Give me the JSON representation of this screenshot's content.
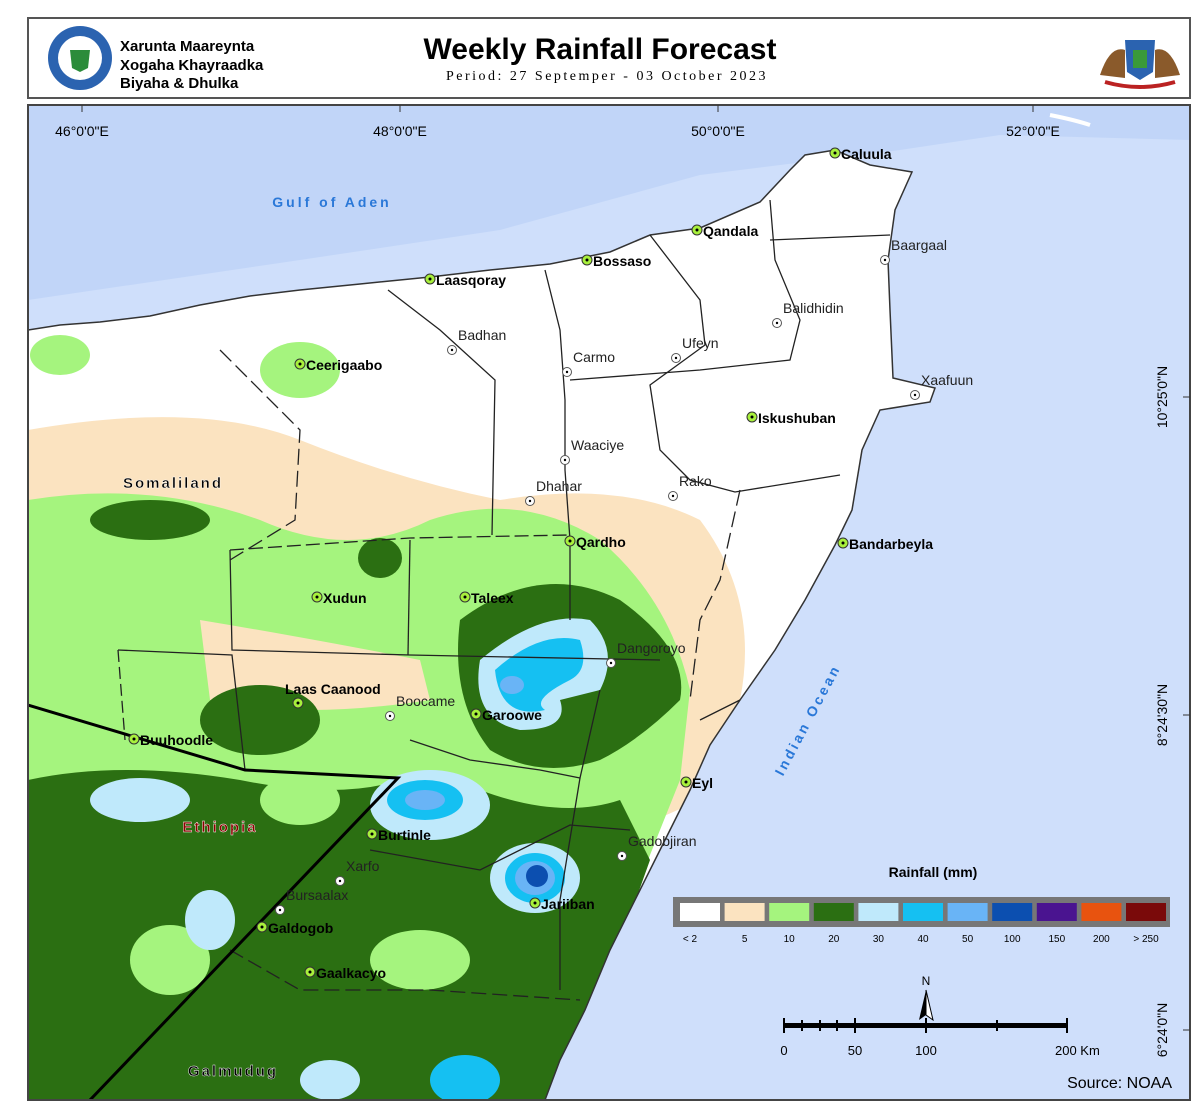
{
  "header": {
    "org_lines": [
      "Xarunta Maareynta",
      "Xogaha Khayraadka",
      "Biyaha & Dhulka"
    ],
    "title": "Weekly Rainfall Forecast",
    "period": "Period: 27 Septemper - 03 October 2023"
  },
  "map": {
    "longitude_labels": [
      "46°0'0\"E",
      "48°0'0\"E",
      "50°0'0\"E",
      "52°0'0\"E"
    ],
    "latitude_labels": [
      "10°25'0\"N",
      "8°24'30\"N",
      "6°24'0\"N"
    ],
    "water_labels": [
      "Gulf of Aden",
      "Indian Ocean"
    ],
    "region_labels": [
      "Somaliland",
      "Ethiopia",
      "Galmudug"
    ],
    "district_towns": [
      "Caluula",
      "Qandala",
      "Bossaso",
      "Laasqoray",
      "Ceerigaabo",
      "Iskushuban",
      "Bandarbeyla",
      "Qardho",
      "Xudun",
      "Taleex",
      "Laas Caanood",
      "Garoowe",
      "Buuhoodle",
      "Eyl",
      "Burtinle",
      "Jariiban",
      "Galdogob",
      "Gaalkacyo"
    ],
    "other_places": [
      "Baargaal",
      "Badhan",
      "Balidhidin",
      "Carmo",
      "Ufeyn",
      "Xaafuun",
      "Waaciye",
      "Dhahar",
      "Rako",
      "Dangoroyo",
      "Boocame",
      "Gadobjiran",
      "Xarfo",
      "Bursaalax"
    ],
    "legend": {
      "title": "Rainfall (mm)",
      "items": [
        {
          "label": "< 2",
          "color": "#ffffff"
        },
        {
          "label": "5",
          "color": "#fbe3c0"
        },
        {
          "label": "10",
          "color": "#a5f47e"
        },
        {
          "label": "20",
          "color": "#2b6f12"
        },
        {
          "label": "30",
          "color": "#bfe9fb"
        },
        {
          "label": "40",
          "color": "#15c0f2"
        },
        {
          "label": "50",
          "color": "#69b4f6"
        },
        {
          "label": "100",
          "color": "#0c4fb0"
        },
        {
          "label": "150",
          "color": "#4a1490"
        },
        {
          "label": "200",
          "color": "#e8530f"
        },
        {
          "label": "> 250",
          "color": "#7a0a0a"
        }
      ]
    },
    "scale_bar": [
      "0",
      "50",
      "100",
      "200 Km"
    ],
    "north": "N",
    "source": "Source: NOAA"
  }
}
